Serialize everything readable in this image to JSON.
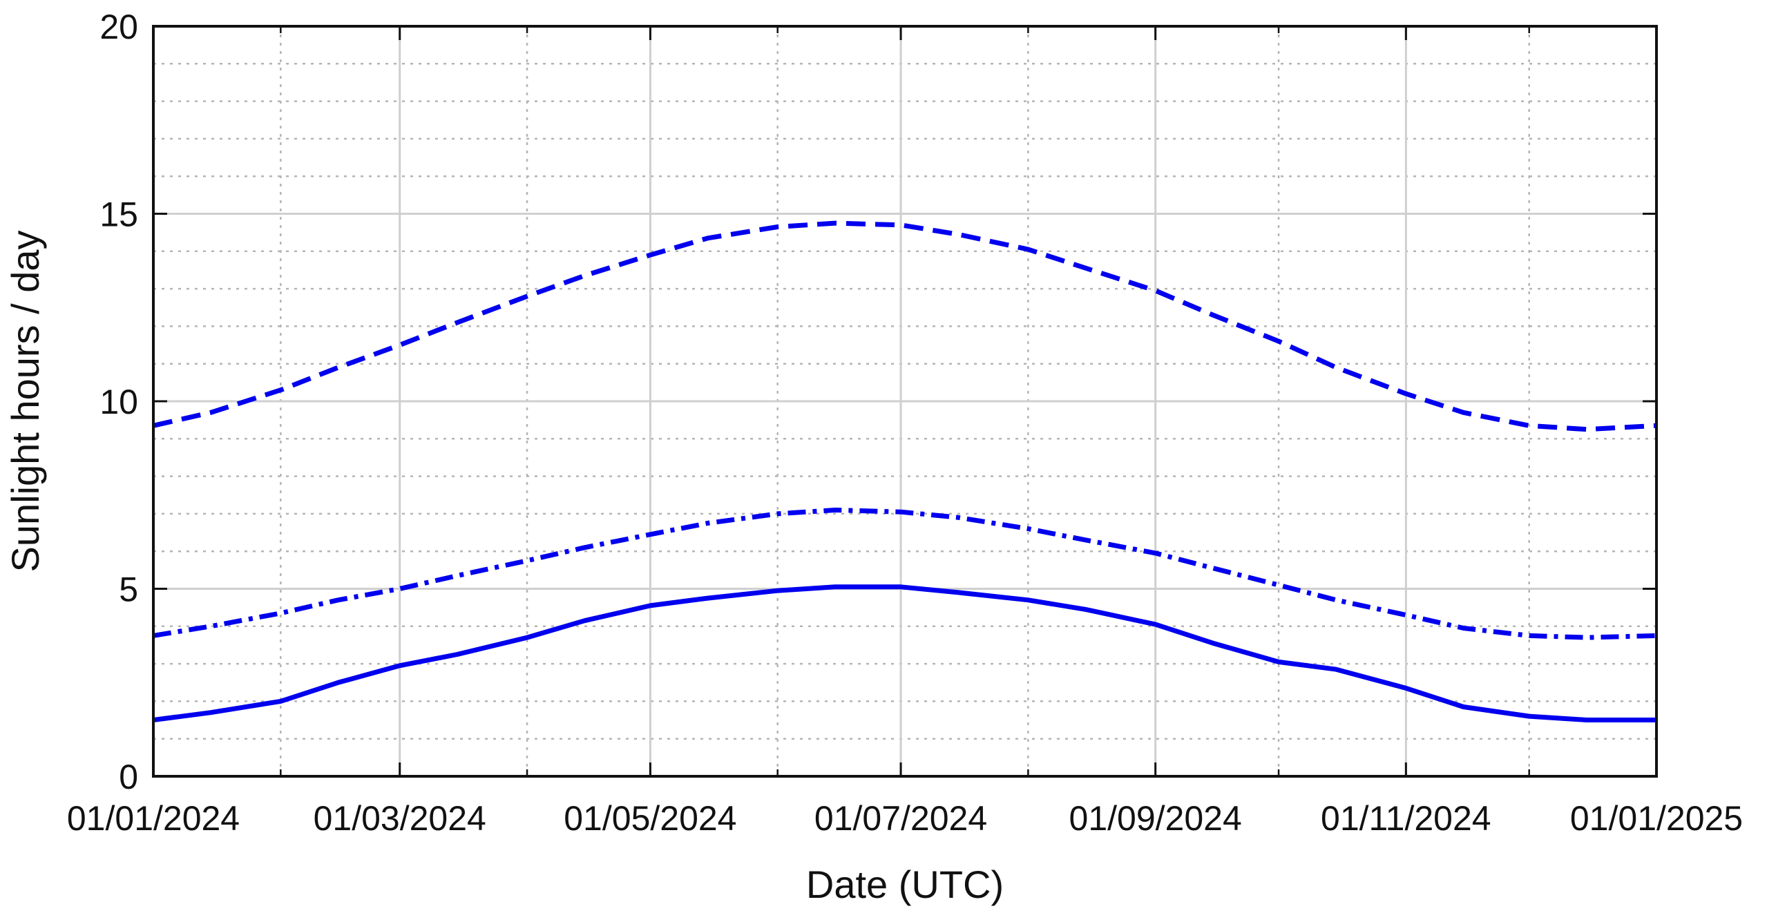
{
  "chart_data": {
    "type": "line",
    "xlabel": "Date (UTC)",
    "ylabel": "Sunlight hours / day",
    "xlim": [
      "2024-01-01",
      "2025-01-01"
    ],
    "ylim": [
      0,
      20
    ],
    "x_ticks": [
      "01/01/2024",
      "01/03/2024",
      "01/05/2024",
      "01/07/2024",
      "01/09/2024",
      "01/11/2024",
      "01/01/2025"
    ],
    "y_ticks": [
      0,
      5,
      10,
      15,
      20
    ],
    "grid": true,
    "line_color": "#0000ee",
    "x": [
      "2024-01-01",
      "2024-01-15",
      "2024-02-01",
      "2024-02-15",
      "2024-03-01",
      "2024-03-15",
      "2024-04-01",
      "2024-04-15",
      "2024-05-01",
      "2024-05-15",
      "2024-06-01",
      "2024-06-15",
      "2024-07-01",
      "2024-07-15",
      "2024-08-01",
      "2024-08-15",
      "2024-09-01",
      "2024-09-15",
      "2024-10-01",
      "2024-10-15",
      "2024-11-01",
      "2024-11-15",
      "2024-12-01",
      "2024-12-15",
      "2025-01-01"
    ],
    "series": [
      {
        "style": "dashed",
        "values": [
          9.35,
          9.7,
          10.3,
          10.9,
          11.5,
          12.1,
          12.8,
          13.35,
          13.9,
          14.35,
          14.65,
          14.75,
          14.7,
          14.45,
          14.05,
          13.55,
          12.95,
          12.3,
          11.6,
          10.9,
          10.2,
          9.7,
          9.35,
          9.25,
          9.35
        ]
      },
      {
        "style": "dash-dot",
        "values": [
          3.75,
          4.0,
          4.35,
          4.7,
          5.0,
          5.35,
          5.75,
          6.1,
          6.45,
          6.75,
          7.0,
          7.1,
          7.05,
          6.9,
          6.6,
          6.3,
          5.95,
          5.55,
          5.1,
          4.7,
          4.3,
          3.95,
          3.75,
          3.7,
          3.75
        ]
      },
      {
        "style": "solid",
        "values": [
          1.5,
          1.7,
          2.0,
          2.5,
          2.95,
          3.25,
          3.7,
          4.15,
          4.55,
          4.75,
          4.95,
          5.05,
          5.05,
          4.9,
          4.7,
          4.45,
          4.05,
          3.55,
          3.05,
          2.85,
          2.35,
          1.85,
          1.6,
          1.5,
          1.5
        ]
      }
    ]
  }
}
